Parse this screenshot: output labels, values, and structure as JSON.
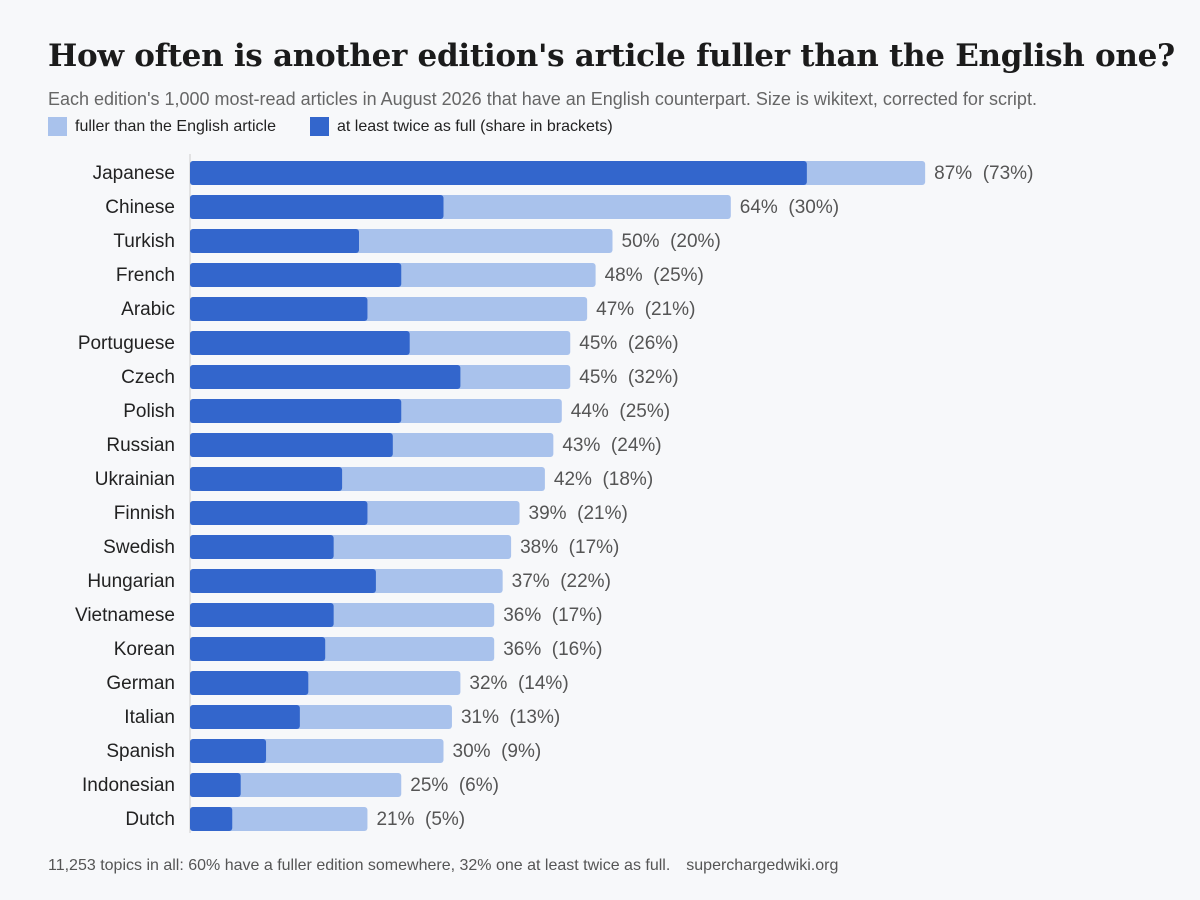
{
  "header": {
    "title": "How often is another edition's article fuller than the English one?",
    "subtitle": "Each edition's 1,000 most-read articles in August 2026 that have an English counterpart. Size is wikitext, corrected for script."
  },
  "legend": {
    "fuller_label": "fuller than the English article",
    "twice_label": "at least twice as full (share in brackets)"
  },
  "colors": {
    "fuller": "#a9c2ec",
    "twice": "#3366cc",
    "axis": "#cccccc",
    "label": "#222222",
    "value": "#555555"
  },
  "chart_data": {
    "type": "bar",
    "orientation": "horizontal",
    "stacked_overlay": true,
    "categories": [
      "Japanese",
      "Chinese",
      "Turkish",
      "French",
      "Arabic",
      "Portuguese",
      "Czech",
      "Polish",
      "Russian",
      "Ukrainian",
      "Finnish",
      "Swedish",
      "Hungarian",
      "Vietnamese",
      "Korean",
      "German",
      "Italian",
      "Spanish",
      "Indonesian",
      "Dutch"
    ],
    "series": [
      {
        "name": "fuller than the English article",
        "values": [
          87,
          64,
          50,
          48,
          47,
          45,
          45,
          44,
          43,
          42,
          39,
          38,
          37,
          36,
          36,
          32,
          31,
          30,
          25,
          21
        ]
      },
      {
        "name": "at least twice as full (share in brackets)",
        "values": [
          73,
          30,
          20,
          25,
          21,
          26,
          32,
          25,
          24,
          18,
          21,
          17,
          22,
          17,
          16,
          14,
          13,
          9,
          6,
          5
        ]
      }
    ],
    "value_labels": [
      "87%  (73%)",
      "64%  (30%)",
      "50%  (20%)",
      "48%  (25%)",
      "47%  (21%)",
      "45%  (26%)",
      "45%  (32%)",
      "44%  (25%)",
      "43%  (24%)",
      "42%  (18%)",
      "39%  (21%)",
      "38%  (17%)",
      "37%  (22%)",
      "36%  (17%)",
      "36%  (16%)",
      "32%  (14%)",
      "31%  (13%)",
      "30%  (9%)",
      "25%  (6%)",
      "21%  (5%)"
    ],
    "xlim": [
      0,
      100
    ],
    "grid": false
  },
  "footer": {
    "note": "11,253 topics in all: 60% have a fuller edition somewhere, 32% one at least twice as full.",
    "source": "superchargedwiki.org"
  }
}
